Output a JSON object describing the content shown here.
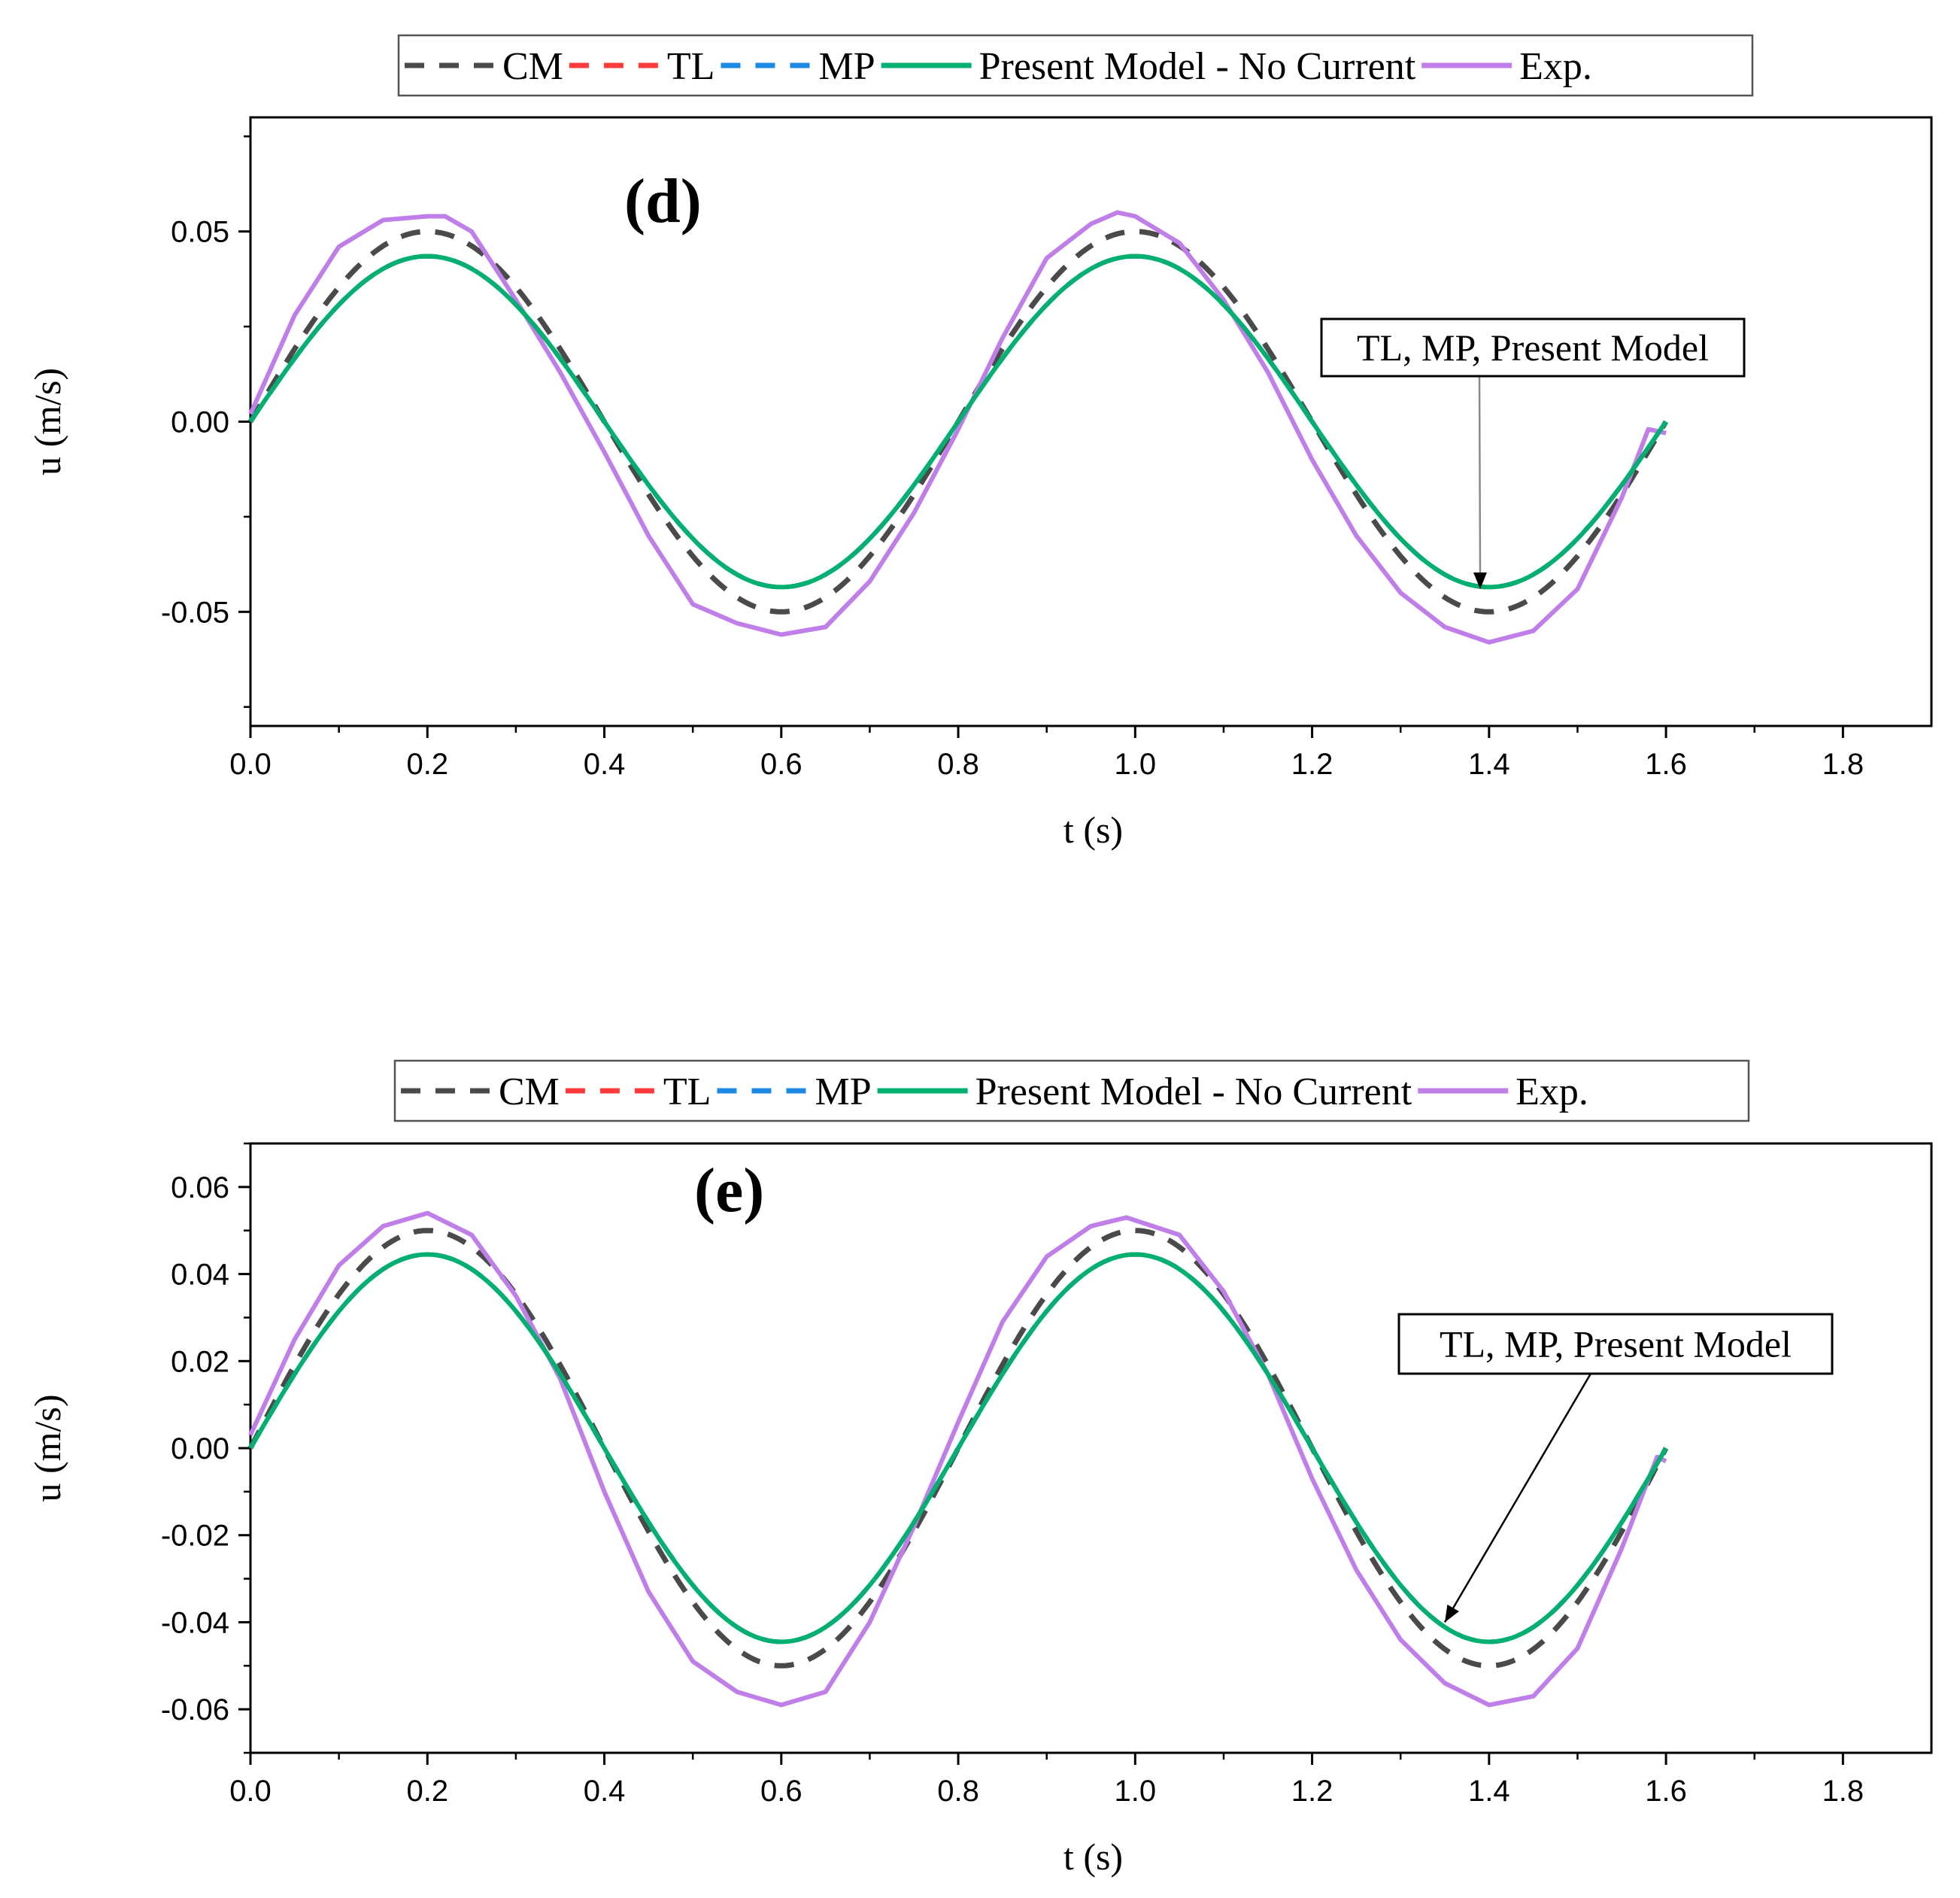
{
  "colors": {
    "CM": "#4a4a4a",
    "TL": "#ff3b3b",
    "MP": "#1e88e5",
    "Present Model - No Current": "#00b070",
    "Exp.": "#c07ee8",
    "annotation_arrow": "#8a8a8a"
  },
  "chart_data": [
    {
      "type": "line",
      "panel_label": "(d)",
      "xlabel": "t (s)",
      "ylabel": "u (m/s)",
      "xlim": [
        0.0,
        1.9
      ],
      "ylim": [
        -0.08,
        0.08
      ],
      "xticks": [
        0.0,
        0.2,
        0.4,
        0.6,
        0.8,
        1.0,
        1.2,
        1.4,
        1.6,
        1.8
      ],
      "xtick_labels": [
        "0.0",
        "0.2",
        "0.4",
        "0.6",
        "0.8",
        "1.0",
        "1.2",
        "1.4",
        "1.6",
        "1.8"
      ],
      "yticks": [
        -0.05,
        0.0,
        0.05
      ],
      "ytick_labels": [
        "-0.05",
        "0.00",
        "0.05"
      ],
      "legend": [
        "CM",
        "TL",
        "MP",
        "Present Model - No Current",
        "Exp."
      ],
      "legend_position": "top",
      "annotation": {
        "text": "TL, MP, Present Model",
        "arrow_to": [
          1.39,
          -0.044
        ]
      },
      "series": [
        {
          "name": "CM",
          "style": "dashed",
          "amplitude": 0.05,
          "period": 0.8,
          "x_end": 1.6
        },
        {
          "name": "TL",
          "style": "dashed",
          "amplitude": 0.0435,
          "period": 0.8,
          "x_end": 1.6
        },
        {
          "name": "MP",
          "style": "dashed",
          "amplitude": 0.0435,
          "period": 0.8,
          "x_end": 1.6
        },
        {
          "name": "Present Model - No Current",
          "style": "solid",
          "amplitude": 0.0435,
          "period": 0.8,
          "x_end": 1.6
        },
        {
          "name": "Exp.",
          "style": "solid",
          "x": [
            0.0,
            0.05,
            0.1,
            0.15,
            0.2,
            0.22,
            0.25,
            0.3,
            0.35,
            0.4,
            0.45,
            0.5,
            0.55,
            0.6,
            0.65,
            0.7,
            0.75,
            0.8,
            0.85,
            0.9,
            0.95,
            0.98,
            1.0,
            1.05,
            1.1,
            1.15,
            1.2,
            1.25,
            1.3,
            1.35,
            1.4,
            1.45,
            1.5,
            1.55,
            1.58,
            1.6
          ],
          "y": [
            0.002,
            0.028,
            0.046,
            0.053,
            0.054,
            0.054,
            0.05,
            0.032,
            0.013,
            -0.008,
            -0.03,
            -0.048,
            -0.053,
            -0.056,
            -0.054,
            -0.042,
            -0.024,
            -0.002,
            0.022,
            0.043,
            0.052,
            0.055,
            0.054,
            0.047,
            0.032,
            0.013,
            -0.01,
            -0.03,
            -0.045,
            -0.054,
            -0.058,
            -0.055,
            -0.044,
            -0.02,
            -0.002,
            -0.003
          ]
        }
      ]
    },
    {
      "type": "line",
      "panel_label": "(e)",
      "xlabel": "t (s)",
      "ylabel": "u (m/s)",
      "xlim": [
        0.0,
        1.9
      ],
      "ylim": [
        -0.07,
        0.07
      ],
      "xticks": [
        0.0,
        0.2,
        0.4,
        0.6,
        0.8,
        1.0,
        1.2,
        1.4,
        1.6,
        1.8
      ],
      "xtick_labels": [
        "0.0",
        "0.2",
        "0.4",
        "0.6",
        "0.8",
        "1.0",
        "1.2",
        "1.4",
        "1.6",
        "1.8"
      ],
      "yticks": [
        -0.06,
        -0.04,
        -0.02,
        0.0,
        0.02,
        0.04,
        0.06
      ],
      "ytick_labels": [
        "-0.06",
        "-0.04",
        "-0.02",
        "0.00",
        "0.02",
        "0.04",
        "0.06"
      ],
      "legend": [
        "CM",
        "TL",
        "MP",
        "Present Model - No Current",
        "Exp."
      ],
      "legend_position": "top",
      "annotation": {
        "text": "TL, MP, Present Model",
        "arrow_to": [
          1.35,
          -0.04
        ]
      },
      "series": [
        {
          "name": "CM",
          "style": "dashed",
          "amplitude": 0.05,
          "period": 0.8,
          "x_end": 1.6
        },
        {
          "name": "TL",
          "style": "dashed",
          "amplitude": 0.0445,
          "period": 0.8,
          "x_end": 1.6
        },
        {
          "name": "MP",
          "style": "dashed",
          "amplitude": 0.0445,
          "period": 0.8,
          "x_end": 1.6
        },
        {
          "name": "Present Model - No Current",
          "style": "solid",
          "amplitude": 0.0445,
          "period": 0.8,
          "x_end": 1.6
        },
        {
          "name": "Exp.",
          "style": "solid",
          "x": [
            0.0,
            0.05,
            0.1,
            0.15,
            0.2,
            0.25,
            0.3,
            0.35,
            0.4,
            0.45,
            0.5,
            0.55,
            0.6,
            0.65,
            0.7,
            0.75,
            0.8,
            0.85,
            0.9,
            0.95,
            0.99,
            1.05,
            1.1,
            1.15,
            1.2,
            1.25,
            1.3,
            1.35,
            1.4,
            1.45,
            1.5,
            1.55,
            1.59,
            1.6
          ],
          "y": [
            0.003,
            0.025,
            0.042,
            0.051,
            0.054,
            0.049,
            0.035,
            0.016,
            -0.01,
            -0.033,
            -0.049,
            -0.056,
            -0.059,
            -0.056,
            -0.04,
            -0.018,
            0.006,
            0.029,
            0.044,
            0.051,
            0.053,
            0.049,
            0.036,
            0.017,
            -0.007,
            -0.028,
            -0.044,
            -0.054,
            -0.059,
            -0.057,
            -0.046,
            -0.023,
            -0.002,
            -0.003
          ]
        }
      ]
    }
  ]
}
